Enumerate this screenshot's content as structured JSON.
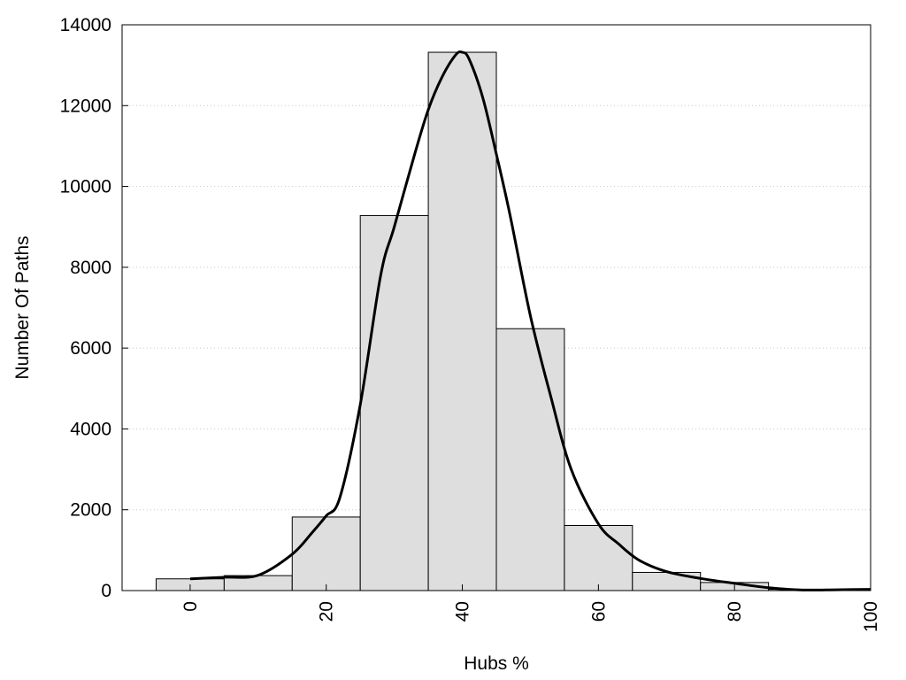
{
  "chart_data": {
    "type": "bar",
    "title": "",
    "xlabel": "Hubs %",
    "ylabel": "Number Of Paths",
    "xlim": [
      -10,
      100
    ],
    "ylim": [
      0,
      14000
    ],
    "x_ticks": [
      0,
      20,
      40,
      60,
      80,
      100
    ],
    "y_ticks": [
      0,
      2000,
      4000,
      6000,
      8000,
      10000,
      12000,
      14000
    ],
    "grid": "horizontal-dotted",
    "bin_width": 10,
    "bins": [
      {
        "center": 0,
        "value": 290
      },
      {
        "center": 10,
        "value": 370
      },
      {
        "center": 20,
        "value": 1820
      },
      {
        "center": 30,
        "value": 9280
      },
      {
        "center": 40,
        "value": 13320
      },
      {
        "center": 50,
        "value": 6480
      },
      {
        "center": 60,
        "value": 1610
      },
      {
        "center": 70,
        "value": 450
      },
      {
        "center": 80,
        "value": 200
      },
      {
        "center": 90,
        "value": 30
      }
    ],
    "density_curve": [
      [
        0,
        290
      ],
      [
        5,
        330
      ],
      [
        10,
        380
      ],
      [
        15,
        900
      ],
      [
        18,
        1450
      ],
      [
        20,
        1850
      ],
      [
        22,
        2300
      ],
      [
        25,
        4600
      ],
      [
        28,
        7800
      ],
      [
        30,
        9000
      ],
      [
        33,
        10800
      ],
      [
        35,
        11900
      ],
      [
        37,
        12700
      ],
      [
        39,
        13250
      ],
      [
        40,
        13320
      ],
      [
        41,
        13150
      ],
      [
        43,
        12200
      ],
      [
        45,
        10800
      ],
      [
        47,
        9300
      ],
      [
        50,
        6800
      ],
      [
        53,
        4800
      ],
      [
        56,
        3000
      ],
      [
        60,
        1650
      ],
      [
        63,
        1150
      ],
      [
        66,
        750
      ],
      [
        70,
        470
      ],
      [
        75,
        300
      ],
      [
        80,
        180
      ],
      [
        85,
        70
      ],
      [
        90,
        15
      ],
      [
        95,
        20
      ],
      [
        100,
        30
      ]
    ],
    "colors": {
      "bar_fill": "#dedede",
      "bar_stroke": "#000000",
      "curve": "#000000",
      "grid": "#c8c8c8"
    }
  }
}
